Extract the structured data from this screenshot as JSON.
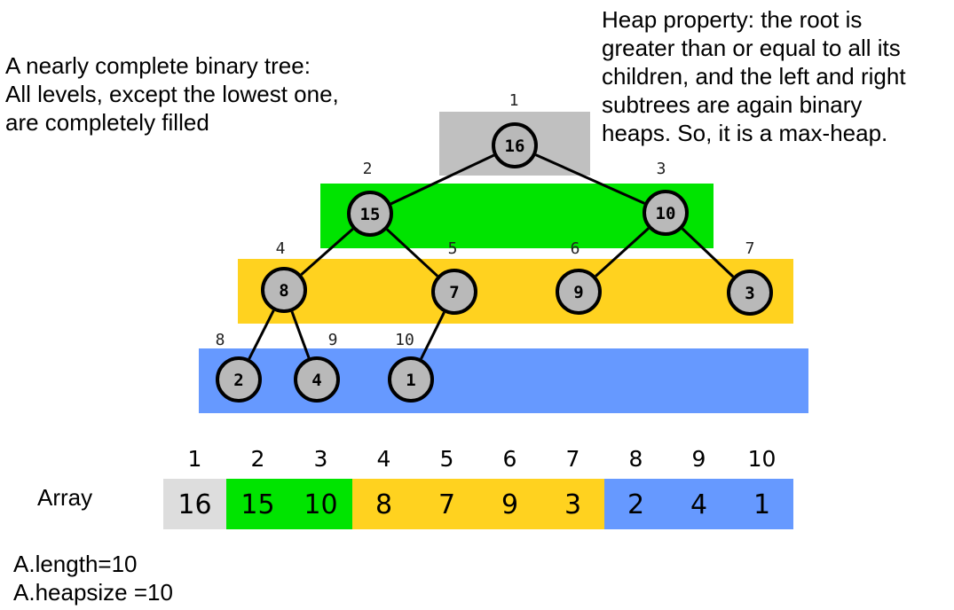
{
  "notes": {
    "left": [
      "A nearly complete binary tree:",
      "All levels, except the lowest one,",
      "are completely filled"
    ],
    "right": [
      "Heap property: the root is",
      "greater than or equal to all its",
      "children, and the left and right",
      "subtrees are again binary",
      "heaps. So, it is a max-heap."
    ]
  },
  "colors": {
    "level1": "#c0c0c0",
    "level2": "#00e400",
    "level3": "#ffd21f",
    "level4": "#6699ff",
    "node_fill": "#b9b9b9",
    "node_stroke": "#000000",
    "array_cell1": "#dddddd"
  },
  "tree": {
    "nodes": [
      {
        "index": "1",
        "value": "16",
        "level": 1
      },
      {
        "index": "2",
        "value": "15",
        "level": 2
      },
      {
        "index": "3",
        "value": "10",
        "level": 2
      },
      {
        "index": "4",
        "value": "8",
        "level": 3
      },
      {
        "index": "5",
        "value": "7",
        "level": 3
      },
      {
        "index": "6",
        "value": "9",
        "level": 3
      },
      {
        "index": "7",
        "value": "3",
        "level": 3
      },
      {
        "index": "8",
        "value": "2",
        "level": 4
      },
      {
        "index": "9",
        "value": "4",
        "level": 4
      },
      {
        "index": "10",
        "value": "1",
        "level": 4
      }
    ],
    "edges": [
      [
        1,
        2
      ],
      [
        1,
        3
      ],
      [
        2,
        4
      ],
      [
        2,
        5
      ],
      [
        3,
        6
      ],
      [
        3,
        7
      ],
      [
        4,
        8
      ],
      [
        4,
        9
      ],
      [
        5,
        10
      ]
    ]
  },
  "array": {
    "label": "Array",
    "indices": [
      "1",
      "2",
      "3",
      "4",
      "5",
      "6",
      "7",
      "8",
      "9",
      "10"
    ],
    "values": [
      "16",
      "15",
      "10",
      "8",
      "7",
      "9",
      "3",
      "2",
      "4",
      "1"
    ]
  },
  "meta_lines": {
    "length": "A.length=10",
    "heapsize": "A.heapsize =10"
  }
}
